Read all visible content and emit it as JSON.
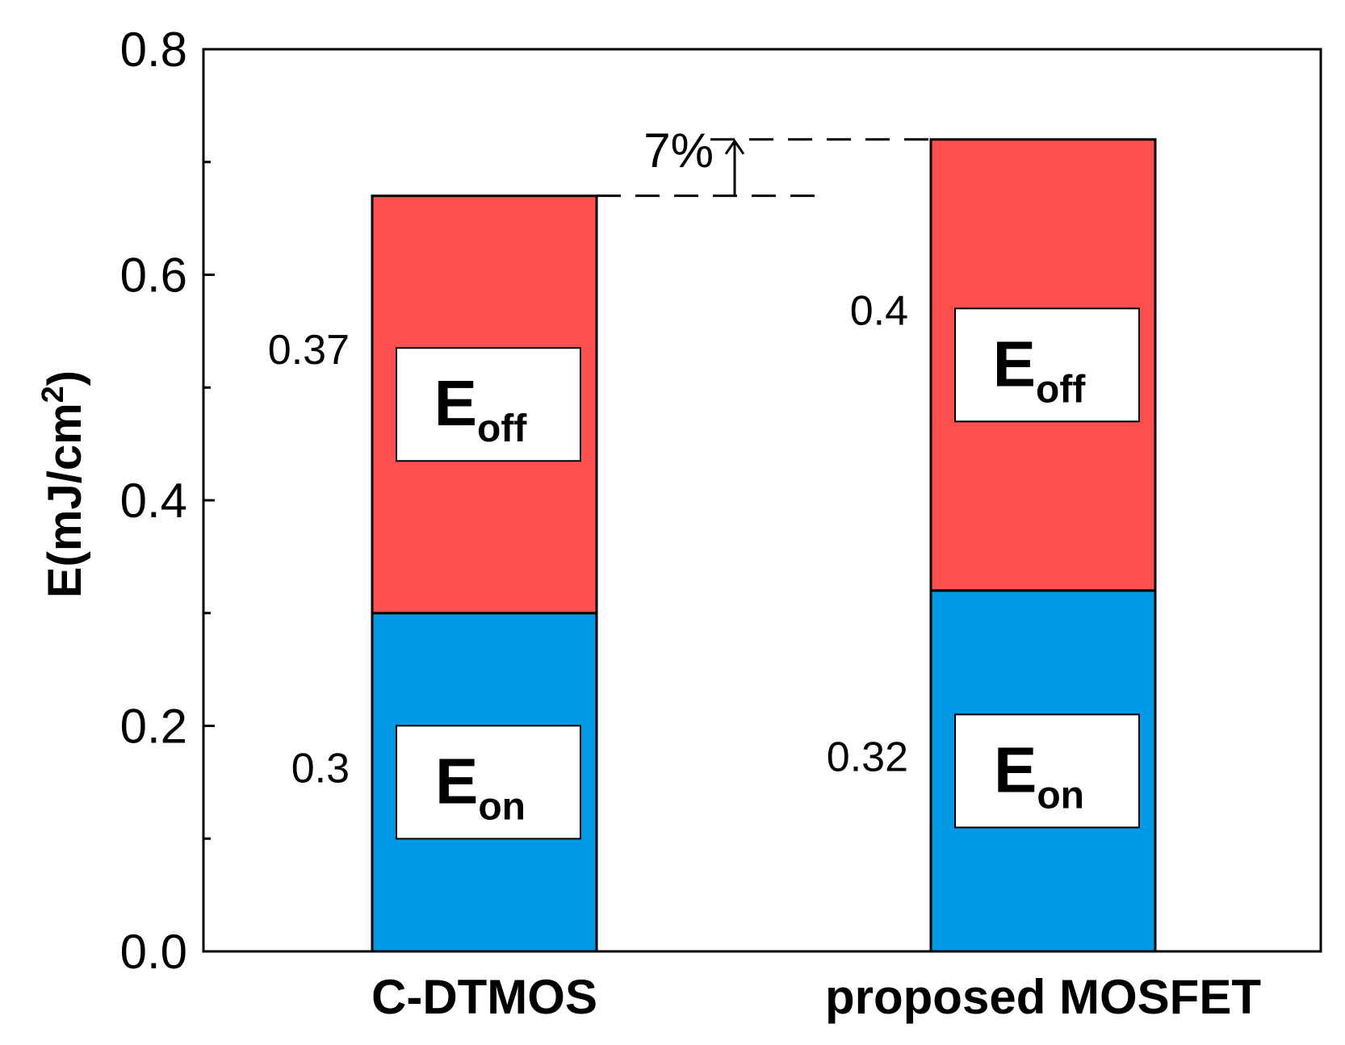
{
  "chart_data": {
    "type": "bar",
    "stacked": true,
    "categories": [
      "C-DTMOS",
      "proposed MOSFET"
    ],
    "series": [
      {
        "name": "Eon",
        "main": "E",
        "sub": "on",
        "values": [
          0.3,
          0.32
        ],
        "labels": [
          "0.3",
          "0.32"
        ],
        "color": "#0099e6"
      },
      {
        "name": "Eoff",
        "main": "E",
        "sub": "off",
        "values": [
          0.37,
          0.4
        ],
        "labels": [
          "0.37",
          "0.4"
        ],
        "color": "#ff4f4f"
      }
    ],
    "ylabel_main": "E(mJ/cm",
    "ylabel_sup": "2",
    "ylabel_end": ")",
    "ylim": [
      0,
      0.8
    ],
    "yticks": [
      "0.0",
      "0.2",
      "0.4",
      "0.6",
      "0.8"
    ],
    "annotation": "7%",
    "grid": false
  }
}
